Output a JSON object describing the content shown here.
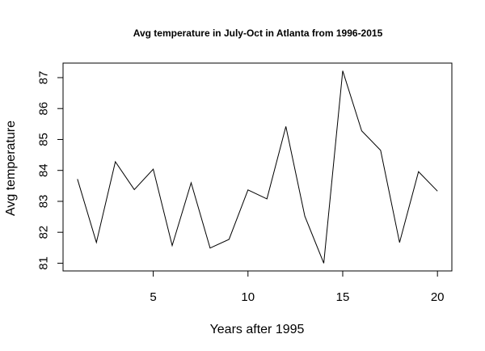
{
  "chart_data": {
    "type": "line",
    "title": "Avg temperature in July-Oct in Atlanta from 1996-2015",
    "xlabel": "Years after 1995",
    "ylabel": "Avg temperature",
    "x": [
      1,
      2,
      3,
      4,
      5,
      6,
      7,
      8,
      9,
      10,
      11,
      12,
      13,
      14,
      15,
      16,
      17,
      18,
      19,
      20
    ],
    "y": [
      83.72,
      81.67,
      84.28,
      83.38,
      84.04,
      81.57,
      83.6,
      81.49,
      81.77,
      83.37,
      83.08,
      85.42,
      82.52,
      81.0,
      87.22,
      85.28,
      84.65,
      81.67,
      83.96,
      83.33
    ],
    "xlim": [
      0.24,
      20.76
    ],
    "ylim": [
      80.75,
      87.47
    ],
    "x_ticks": [
      5,
      10,
      15,
      20
    ],
    "y_ticks": [
      81,
      82,
      83,
      84,
      85,
      86,
      87
    ],
    "grid": false,
    "line_color": "#000000"
  }
}
